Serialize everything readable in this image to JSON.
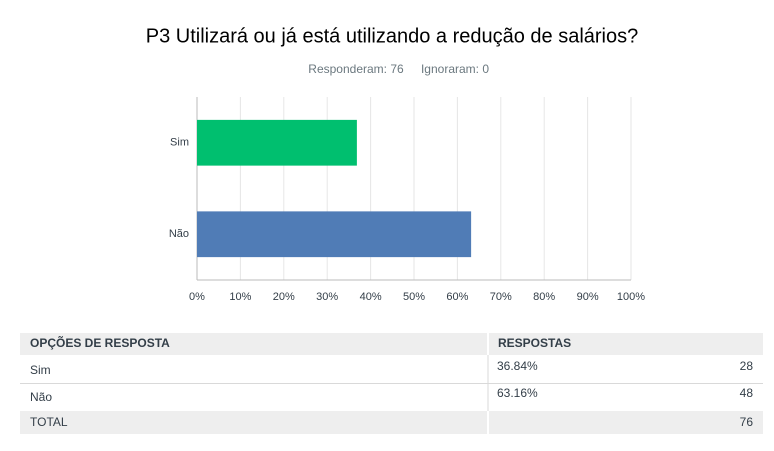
{
  "chart_data": {
    "type": "bar",
    "orientation": "horizontal",
    "title": "P3 Utilizará ou já está utilizando a redução de salários?",
    "summary": [
      "Responderam: 76",
      "Ignoraram: 0"
    ],
    "categories": [
      "Sim",
      "Não"
    ],
    "values": [
      36.84,
      63.16
    ],
    "colors": [
      "#00bf6f",
      "#507cb6"
    ],
    "xlim": [
      0,
      100
    ],
    "xticks": [
      {
        "value": 0,
        "label": "0%"
      },
      {
        "value": 10,
        "label": "10%"
      },
      {
        "value": 20,
        "label": "20%"
      },
      {
        "value": 30,
        "label": "30%"
      },
      {
        "value": 40,
        "label": "40%"
      },
      {
        "value": 50,
        "label": "50%"
      },
      {
        "value": 60,
        "label": "60%"
      },
      {
        "value": 70,
        "label": "70%"
      },
      {
        "value": 80,
        "label": "80%"
      },
      {
        "value": 90,
        "label": "90%"
      },
      {
        "value": 100,
        "label": "100%"
      }
    ],
    "grid": true
  },
  "table": {
    "headers": [
      "OPÇÕES DE RESPOSTA",
      "RESPOSTAS"
    ],
    "rows": [
      [
        "Sim",
        "36.84%",
        "28"
      ],
      [
        "Não",
        "63.16%",
        "48"
      ]
    ],
    "total": {
      "label": "TOTAL",
      "count": "76"
    }
  }
}
